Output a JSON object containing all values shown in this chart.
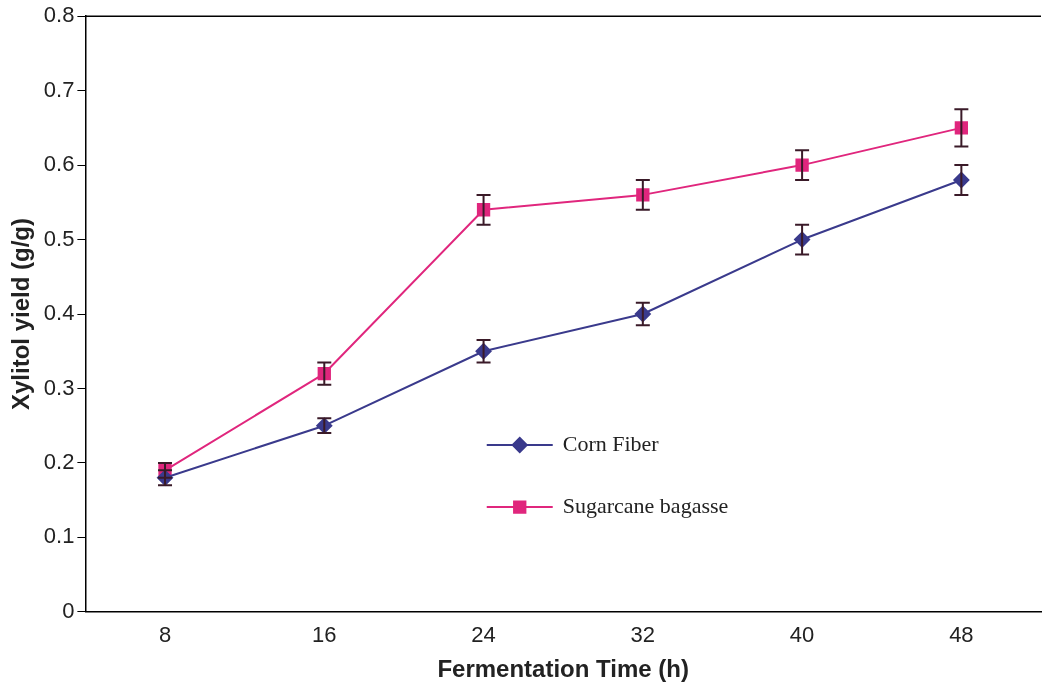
{
  "chart_data": {
    "type": "line",
    "xlabel": "Fermentation Time (h)",
    "ylabel": "Xylitol yield (g/g)",
    "categories": [
      "8",
      "16",
      "24",
      "32",
      "40",
      "48"
    ],
    "series": [
      {
        "name": "Corn Fiber",
        "color": "#3a3a8c",
        "marker": "diamond",
        "values": [
          0.18,
          0.25,
          0.35,
          0.4,
          0.5,
          0.58
        ],
        "errors": [
          0.01,
          0.01,
          0.015,
          0.015,
          0.02,
          0.02
        ]
      },
      {
        "name": "Sugarcane bagasse",
        "color": "#e0267d",
        "marker": "square",
        "values": [
          0.19,
          0.32,
          0.54,
          0.56,
          0.6,
          0.65
        ],
        "errors": [
          0.01,
          0.015,
          0.02,
          0.02,
          0.02,
          0.025
        ]
      }
    ],
    "ylim": [
      0,
      0.8
    ],
    "yticks": [
      0,
      0.1,
      0.2,
      0.3,
      0.4,
      0.5,
      0.6,
      0.7,
      0.8
    ],
    "grid": false,
    "legend": "bottom right"
  }
}
